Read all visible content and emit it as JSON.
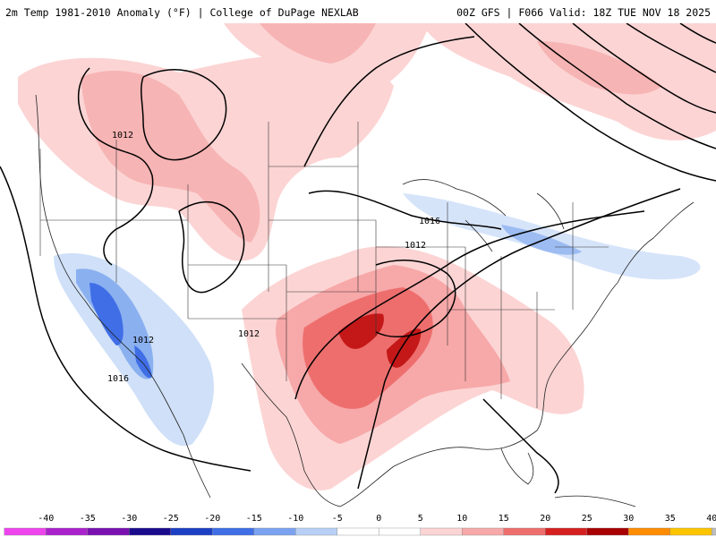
{
  "header": {
    "title_left": "2m Temp 1981-2010 Anomaly (°F) | College of DuPage NEXLAB",
    "title_right": "00Z GFS | F066 Valid: 18Z TUE NOV 18 2025"
  },
  "map": {
    "isobar_labels": [
      "1012",
      "1016",
      "1012",
      "1012",
      "1016",
      "1012"
    ]
  },
  "colorbar": {
    "ticks": [
      "-40",
      "-35",
      "-30",
      "-25",
      "-20",
      "-15",
      "-10",
      "-5",
      "0",
      "5",
      "10",
      "15",
      "20",
      "25",
      "30",
      "35",
      "40"
    ],
    "colors": [
      "#ee44ee",
      "#aa22cc",
      "#7a10b0",
      "#1a0a8c",
      "#1d3fc4",
      "#3f6ee6",
      "#7aa2f0",
      "#b8d0f6",
      "#ffffff",
      "#ffffff",
      "#fcd4d4",
      "#f7a8a8",
      "#ee6e6e",
      "#d62020",
      "#a80000",
      "#ff8c00",
      "#ffc400",
      "#bdbdbd"
    ]
  }
}
